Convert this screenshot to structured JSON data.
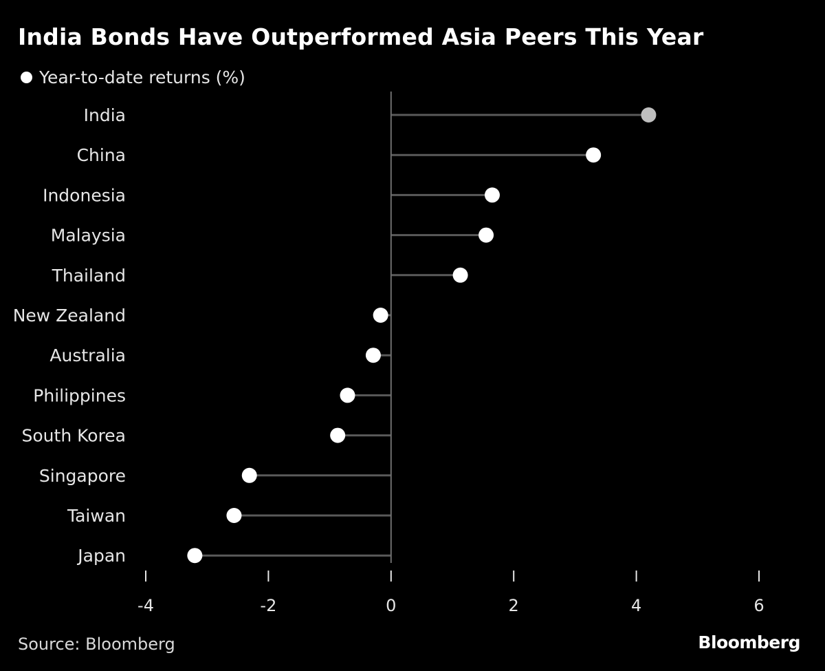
{
  "title": "India Bonds Have Outperformed Asia Peers This Year",
  "legend_label": "Year-to-date returns (%)",
  "source": "Source: Bloomberg",
  "brand": "Bloomberg",
  "colors": {
    "background": "#000000",
    "stem": "#5a5a5a",
    "axis": "#6e6e6e",
    "dot": "#ffffff",
    "highlight_dot": "#bfbfbf",
    "text": "#e6e6e6"
  },
  "chart_data": {
    "type": "lollipop",
    "orientation": "horizontal",
    "categories": [
      "India",
      "China",
      "Indonesia",
      "Malaysia",
      "Thailand",
      "New Zealand",
      "Australia",
      "Philippines",
      "South Korea",
      "Singapore",
      "Taiwan",
      "Japan"
    ],
    "values": [
      4.2,
      3.3,
      1.65,
      1.55,
      1.13,
      -0.17,
      -0.29,
      -0.71,
      -0.87,
      -2.31,
      -2.56,
      -3.2
    ],
    "highlight_index": 0,
    "xticks": [
      -4,
      -2,
      0,
      2,
      4,
      6
    ],
    "tick_labels": [
      "-4",
      "-2",
      "0",
      "2",
      "4",
      "6"
    ],
    "xlim": [
      -4,
      6
    ],
    "legend_position": "top-left",
    "grid": false
  }
}
